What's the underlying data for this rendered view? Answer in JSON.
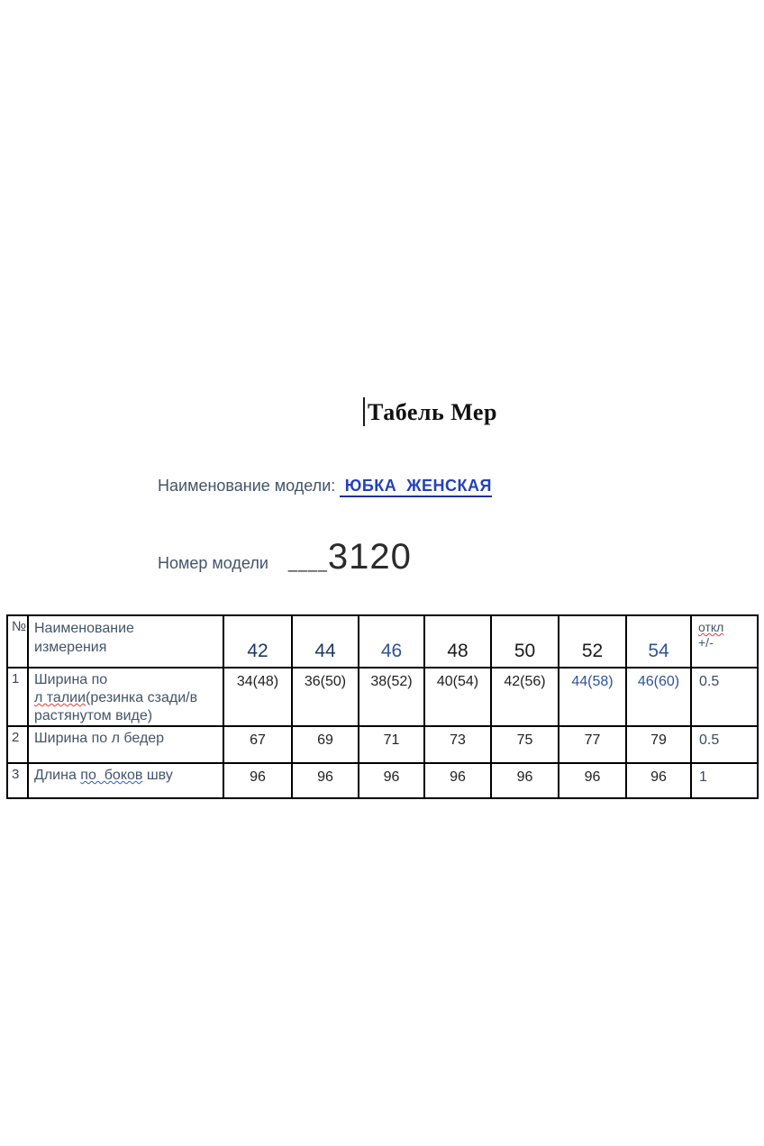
{
  "page": {
    "title": "Табель Мер",
    "model_name": {
      "label": "Наименование модели: ",
      "value": " ЮБКА  ЖЕНСКАЯ"
    },
    "model_number": {
      "label": "Номер модели",
      "underscores": "____",
      "value": "3120"
    }
  },
  "colors": {
    "label_text": "#44546a",
    "model_name_blue": "#2440bb",
    "size_navy": "#1f3864",
    "size_blue": "#2e5396",
    "value_black": "#1f1f1f",
    "table_border": "#000000",
    "spellcheck_red": "#e03c31",
    "grammar_blue": "#2a5ad0"
  },
  "table": {
    "header": {
      "num": "№",
      "name_line1": "Наименование",
      "name_line2": "измерения",
      "sizes": [
        {
          "label": "42",
          "color": "#1f3864"
        },
        {
          "label": "44",
          "color": "#1f3864"
        },
        {
          "label": "46",
          "color": "#2e5396"
        },
        {
          "label": "48",
          "color": "#1a1a1a"
        },
        {
          "label": "50",
          "color": "#1a1a1a"
        },
        {
          "label": "52",
          "color": "#1a1a1a"
        },
        {
          "label": "54",
          "color": "#2e5396"
        }
      ],
      "deviation_line1": "откл",
      "deviation_line2": "+/-"
    },
    "rows": [
      {
        "num": "1",
        "name_line1": "Ширина по",
        "name_line2_wavy": "л талии",
        "name_line2_rest": "(резинка сзади/в",
        "name_line3": "растянутом виде)",
        "values": [
          "34(48)",
          "36(50)",
          "38(52)",
          "40(54)",
          "42(56)",
          "44(58)",
          "46(60)"
        ],
        "value_colors": [
          "#1f1f1f",
          "#1f1f1f",
          "#1f1f1f",
          "#1f1f1f",
          "#1f1f1f",
          "#2e5396",
          "#2e5396"
        ],
        "deviation": "0.5"
      },
      {
        "num": "2",
        "name": "Ширина по л бедер",
        "values": [
          "67",
          "69",
          "71",
          "73",
          "75",
          "77",
          "79"
        ],
        "value_colors": [
          "#1f1f1f",
          "#1f1f1f",
          "#1f1f1f",
          "#1f1f1f",
          "#1f1f1f",
          "#1f1f1f",
          "#1f1f1f"
        ],
        "deviation": "0.5"
      },
      {
        "num": "3",
        "name_prefix": "Длина ",
        "name_underlined": "по  боков",
        "name_suffix": " шву",
        "values": [
          "96",
          "96",
          "96",
          "96",
          "96",
          "96",
          "96"
        ],
        "value_colors": [
          "#1f1f1f",
          "#1f1f1f",
          "#1f1f1f",
          "#1f1f1f",
          "#1f1f1f",
          "#1f1f1f",
          "#1f1f1f"
        ],
        "deviation": "1"
      }
    ]
  }
}
